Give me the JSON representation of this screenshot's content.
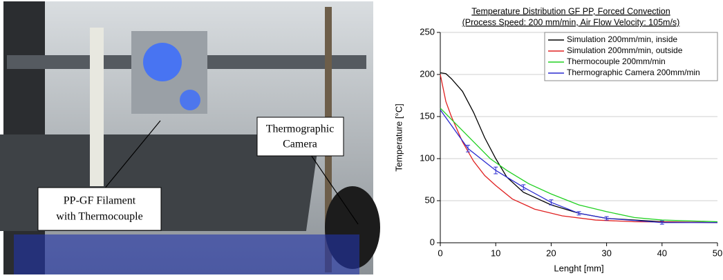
{
  "photo": {
    "callouts": [
      {
        "lines": [
          "PP-GF Filament",
          "with Thermocouple"
        ]
      },
      {
        "lines": [
          "Thermographic",
          "Camera"
        ]
      }
    ]
  },
  "chart_data": {
    "type": "line",
    "title": [
      "Temperature Distribution GF PP, Forced Convection",
      "(Process Speed: 200 mm/min, Air Flow Velocity: 105m/s)"
    ],
    "xlabel": "Lenght [mm]",
    "ylabel": "Temperature [°C]",
    "xlim": [
      0,
      50
    ],
    "xticks": [
      0,
      10,
      20,
      30,
      40,
      50
    ],
    "ylim": [
      0,
      250
    ],
    "yticks": [
      0,
      50,
      100,
      150,
      200,
      250
    ],
    "grid": true,
    "legend": "top-right",
    "series": [
      {
        "name": "Simulation 200mm/min, inside",
        "color": "#000000",
        "x": [
          0,
          1,
          2,
          4,
          6,
          8,
          10,
          12,
          15,
          20,
          25,
          30,
          40,
          50
        ],
        "values": [
          202,
          201,
          195,
          180,
          155,
          125,
          100,
          78,
          60,
          45,
          35,
          29,
          25,
          24
        ]
      },
      {
        "name": "Simulation 200mm/min, outside",
        "color": "#e02020",
        "x": [
          0,
          1,
          2,
          4,
          6,
          8,
          10,
          13,
          17,
          22,
          28,
          35,
          50
        ],
        "values": [
          200,
          168,
          150,
          120,
          97,
          80,
          68,
          52,
          40,
          32,
          27,
          25,
          24
        ]
      },
      {
        "name": "Thermocouple 200mm/min",
        "color": "#20d020",
        "x": [
          0,
          3,
          6,
          9,
          12,
          16,
          20,
          25,
          30,
          35,
          40,
          50
        ],
        "values": [
          160,
          140,
          120,
          100,
          86,
          70,
          58,
          45,
          37,
          30,
          27,
          25
        ]
      },
      {
        "name": "Thermographic Camera 200mm/min",
        "color": "#2a2ad0",
        "x": [
          0,
          5,
          10,
          15,
          20,
          25,
          30,
          40,
          50
        ],
        "values": [
          158,
          112,
          86,
          66,
          48,
          35,
          29,
          24,
          24
        ],
        "errors": [
          null,
          4,
          4,
          3,
          3,
          2,
          2,
          2,
          null
        ]
      }
    ]
  }
}
